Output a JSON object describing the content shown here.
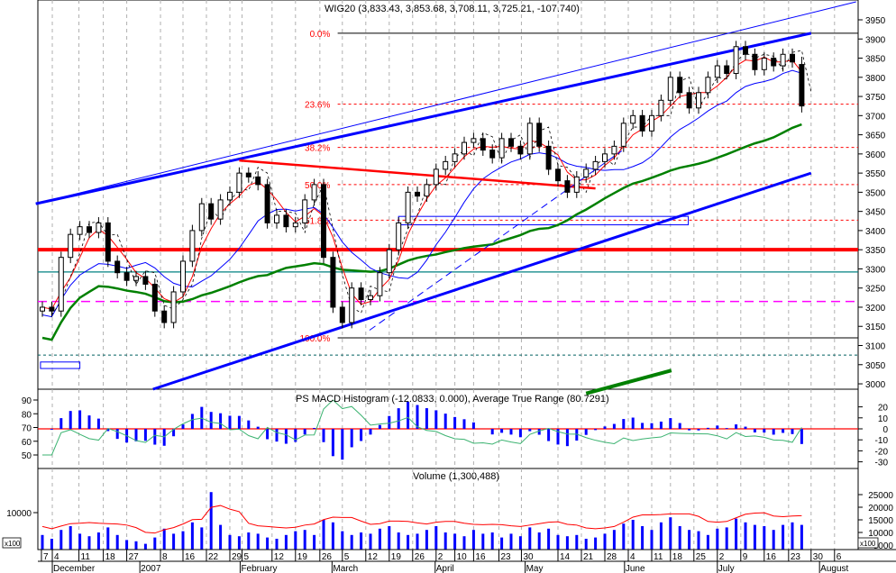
{
  "chart_data": {
    "type": "candlestick",
    "title": "WIG20 (3,833.43, 3,853.68, 3,708.11, 3,725.21, -107.740)",
    "price_axis": {
      "min": 3000,
      "max": 3950,
      "step": 50
    },
    "closes": [
      3200,
      3190,
      3330,
      3390,
      3410,
      3395,
      3420,
      3320,
      3290,
      3270,
      3280,
      3260,
      3190,
      3160,
      3240,
      3320,
      3400,
      3470,
      3430,
      3480,
      3500,
      3550,
      3540,
      3520,
      3420,
      3440,
      3410,
      3420,
      3480,
      3520,
      3330,
      3200,
      3160,
      3250,
      3220,
      3230,
      3290,
      3350,
      3420,
      3500,
      3490,
      3520,
      3560,
      3580,
      3600,
      3630,
      3640,
      3610,
      3590,
      3640,
      3620,
      3600,
      3680,
      3620,
      3560,
      3530,
      3500,
      3540,
      3560,
      3580,
      3600,
      3620,
      3680,
      3700,
      3660,
      3700,
      3740,
      3800,
      3760,
      3720,
      3760,
      3800,
      3830,
      3810,
      3880,
      3860,
      3820,
      3850,
      3830,
      3860,
      3840,
      3725.21
    ],
    "last_candle": {
      "open": 3833.43,
      "high": 3853.68,
      "low": 3708.11,
      "close": 3725.21,
      "change": -107.74
    },
    "volume": [
      9000,
      7500,
      11000,
      12500,
      9500,
      8500,
      10000,
      12000,
      9000,
      7000,
      6500,
      5500,
      8000,
      11500,
      9500,
      10500,
      14000,
      12000,
      26000,
      13000,
      9000,
      8500,
      10000,
      9500,
      8000,
      7500,
      9000,
      10500,
      11000,
      9000,
      15000,
      14000,
      10500,
      9000,
      10000,
      9500,
      11500,
      12500,
      10000,
      9000,
      9500,
      11000,
      12500,
      10000,
      9500,
      8500,
      11000,
      9500,
      10000,
      8000,
      9500,
      8500,
      12000,
      10000,
      11500,
      9000,
      8500,
      9000,
      7500,
      8000,
      9500,
      11000,
      13500,
      15000,
      12500,
      11000,
      14000,
      16000,
      12500,
      11000,
      10500,
      9000,
      11500,
      12000,
      15500,
      14000,
      13000,
      12500,
      11000,
      13000,
      14000,
      13000
    ],
    "fibonacci": [
      {
        "label": "0.0%",
        "price": 3915
      },
      {
        "label": "23.6%",
        "price": 3730
      },
      {
        "label": "38.2%",
        "price": 3617
      },
      {
        "label": "50.0%",
        "price": 3520
      },
      {
        "label": "61.8%",
        "price": 3427
      },
      {
        "label": "100.0%",
        "price": 3120
      }
    ],
    "horizontal_lines": [
      {
        "name": "support-resistance-3350",
        "price": 3350,
        "color": "#ff0000",
        "width": 4,
        "dash": ""
      },
      {
        "name": "teal-level-line",
        "price": 3292,
        "color": "#008080",
        "width": 1.2,
        "dash": ""
      },
      {
        "name": "magenta-level-line",
        "price": 3215,
        "color": "#ff00ff",
        "width": 1.5,
        "dash": "10,6"
      },
      {
        "name": "teal-dashed-level-line",
        "price": 3075,
        "color": "#006060",
        "width": 1,
        "dash": "3,3"
      }
    ],
    "trendlines": [
      {
        "name": "upper-channel-thick",
        "from": [
          -0.7,
          3470
        ],
        "to": [
          82,
          3915
        ],
        "color": "#0000ff",
        "width": 3
      },
      {
        "name": "upper-channel-thin",
        "from": [
          -0.7,
          3470
        ],
        "to": [
          86.8,
          3997
        ],
        "color": "#0000ff",
        "width": 1
      },
      {
        "name": "lower-channel-thick",
        "from": [
          11.8,
          2986
        ],
        "to": [
          82,
          3550
        ],
        "color": "#0000ff",
        "width": 3
      },
      {
        "name": "falling-red-trendline",
        "from": [
          21,
          3583
        ],
        "to": [
          59,
          3510
        ],
        "color": "#ff0000",
        "width": 2.5
      },
      {
        "name": "thin-dashed-support",
        "from": [
          34.9,
          3140
        ],
        "to": [
          61.8,
          3608
        ],
        "color": "#0000ff",
        "width": 1,
        "dash": "8,5"
      },
      {
        "name": "green-short-trendline",
        "from": [
          58,
          2975
        ],
        "to": [
          67.1,
          3035
        ],
        "color": "#008000",
        "width": 4
      }
    ],
    "rectangles": [
      {
        "name": "blue-range-box",
        "i0": 38,
        "i1": 68.9,
        "p0": 3415,
        "p1": 3437
      },
      {
        "name": "small-blue-box",
        "i0": -0.2,
        "i1": 4,
        "p0": 3040,
        "p1": 3057
      }
    ],
    "x_ticks": [
      {
        "label": "7",
        "i": -0.1
      },
      {
        "label": "4",
        "i": 1.06
      },
      {
        "label": "11",
        "i": 3.9
      },
      {
        "label": "18",
        "i": 6.5
      },
      {
        "label": "27",
        "i": 9.0
      },
      {
        "label": "8",
        "i": 12.6
      },
      {
        "label": "16",
        "i": 15.0
      },
      {
        "label": "22",
        "i": 17.5
      },
      {
        "label": "29",
        "i": 20.0
      },
      {
        "label": "5",
        "i": 21.3
      },
      {
        "label": "12",
        "i": 24.5
      },
      {
        "label": "19",
        "i": 27.0
      },
      {
        "label": "26",
        "i": 29.6
      },
      {
        "label": "5",
        "i": 32.0
      },
      {
        "label": "12",
        "i": 34.5
      },
      {
        "label": "19",
        "i": 37.0
      },
      {
        "label": "26",
        "i": 39.5
      },
      {
        "label": "2",
        "i": 42.0
      },
      {
        "label": "10",
        "i": 44.0
      },
      {
        "label": "16",
        "i": 46.0
      },
      {
        "label": "23",
        "i": 48.7
      },
      {
        "label": "30",
        "i": 51.1
      },
      {
        "label": "14",
        "i": 55.0
      },
      {
        "label": "21",
        "i": 57.5
      },
      {
        "label": "28",
        "i": 60.0
      },
      {
        "label": "4",
        "i": 62.5
      },
      {
        "label": "11",
        "i": 65.0
      },
      {
        "label": "18",
        "i": 67.0
      },
      {
        "label": "25",
        "i": 69.5
      },
      {
        "label": "2",
        "i": 72.0
      },
      {
        "label": "9",
        "i": 74.5
      },
      {
        "label": "16",
        "i": 77.0
      },
      {
        "label": "23",
        "i": 79.6
      },
      {
        "label": "30",
        "i": 82.0
      },
      {
        "label": "6",
        "i": 84.5
      }
    ],
    "months": [
      {
        "label": "December",
        "i": 1.06
      },
      {
        "label": "2007",
        "i": 10.4
      },
      {
        "label": "February",
        "i": 21.1
      },
      {
        "label": "March",
        "i": 30.9
      },
      {
        "label": "April",
        "i": 41.9
      },
      {
        "label": "May",
        "i": 51.5
      },
      {
        "label": "June",
        "i": 62.1
      },
      {
        "label": "July",
        "i": 72.0
      },
      {
        "label": "August",
        "i": 82.9
      }
    ],
    "macd_panel": {
      "title": "PS MACD Histogram (-12.0833, 0.000), Average True Range (80.7291)",
      "right_ticks": [
        20,
        10,
        0,
        -10,
        -20,
        -30
      ],
      "left_ticks": [
        90,
        80,
        70,
        60,
        50
      ],
      "last_hist": -12.0833,
      "last_atr": 80.7291
    },
    "volume_panel": {
      "title": "Volume (1,300,488)",
      "right_ticks": [
        25000,
        20000,
        15000,
        10000,
        5000
      ],
      "left_ticks": [
        10000
      ],
      "multiplier_label": "x100"
    },
    "colors": {
      "candle": "#000000",
      "ma_short": "#ff0000",
      "ma_mid": "#0000ff",
      "ma_long": "#008000",
      "macd_hist": "#0000ff",
      "atr": "#3cb371",
      "volume": "#0000ff",
      "volume_ma": "#ff0000",
      "fib": "#ff0000",
      "grid": "#b0b0b0"
    }
  }
}
